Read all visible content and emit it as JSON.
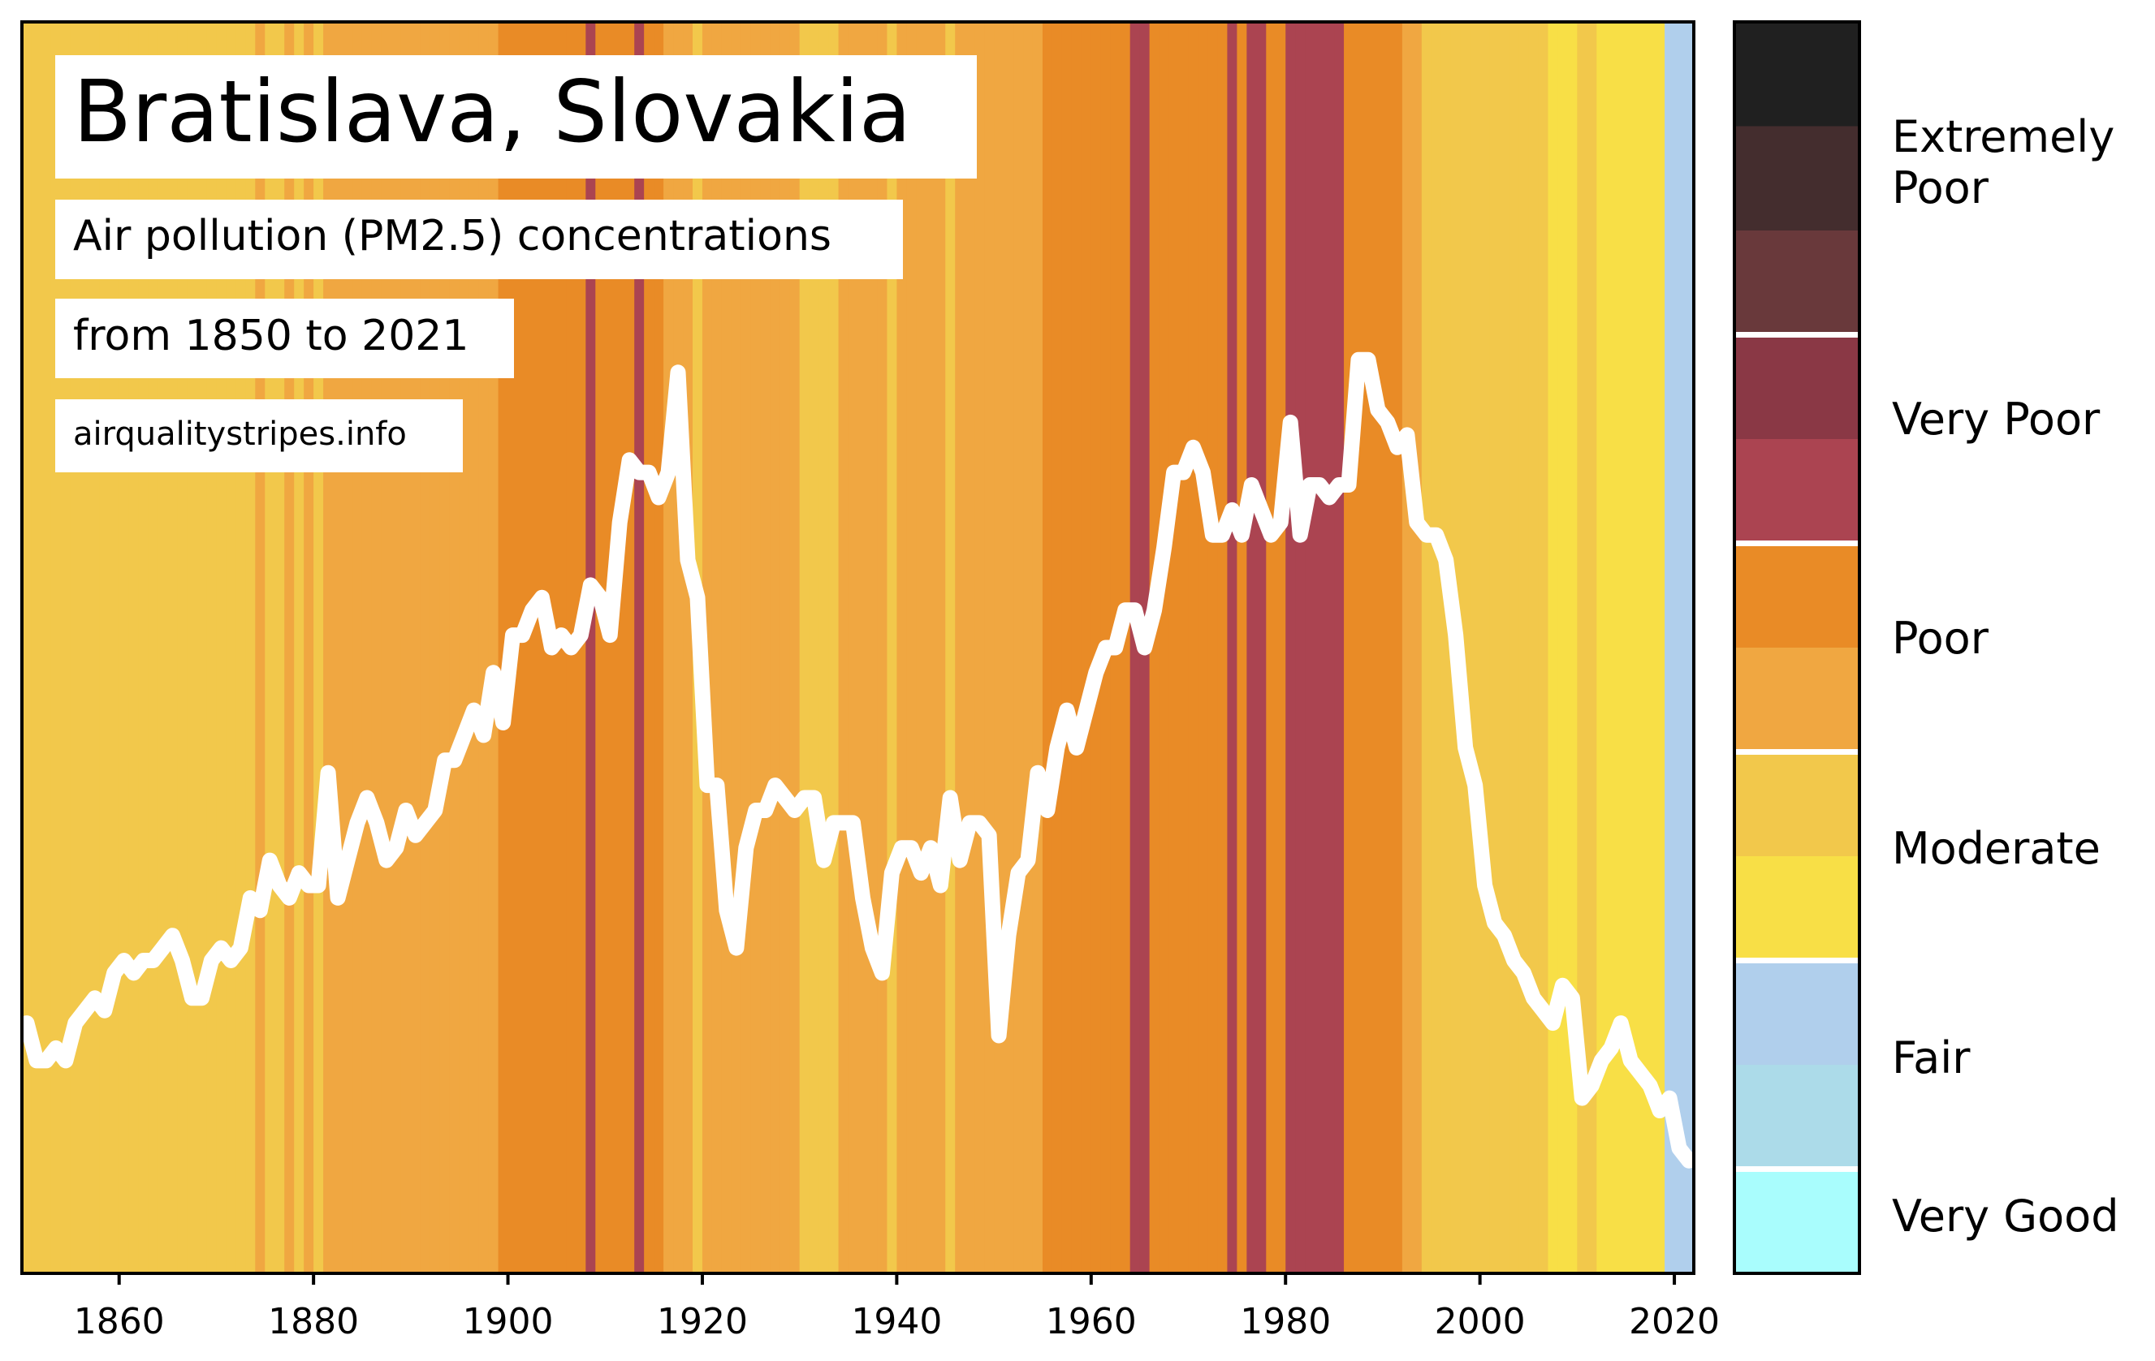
{
  "title": "Bratislava, Slovakia",
  "subtitle_line1": "Air pollution (PM2.5) concentrations",
  "subtitle_line2": "from 1850 to 2021",
  "source": "airqualitystripes.info",
  "chart_data": {
    "type": "heatmap",
    "title": "Bratislava, Slovakia",
    "subtitle": "Air pollution (PM2.5) concentrations from 1850 to 2021",
    "xlim": [
      1850,
      2022
    ],
    "x_ticks": [
      1860,
      1880,
      1900,
      1920,
      1940,
      1960,
      1980,
      2000,
      2020
    ],
    "y_axis_shown": false,
    "grid": false,
    "years_start": 1850,
    "stripe_colors": {
      "fair_light": "#b0cfec",
      "moderate_light": "#f8df46",
      "moderate_dark": "#f2c84b",
      "poor_light": "#f0a741",
      "poor_dark": "#e98b26",
      "very_poor_light": "#ab4451"
    },
    "stripes": [
      "moderate_dark",
      "moderate_dark",
      "moderate_dark",
      "moderate_dark",
      "moderate_dark",
      "moderate_dark",
      "moderate_dark",
      "moderate_dark",
      "moderate_dark",
      "moderate_dark",
      "moderate_dark",
      "moderate_dark",
      "moderate_dark",
      "moderate_dark",
      "moderate_dark",
      "moderate_dark",
      "moderate_dark",
      "moderate_dark",
      "moderate_dark",
      "moderate_dark",
      "moderate_dark",
      "moderate_dark",
      "moderate_dark",
      "moderate_dark",
      "poor_light",
      "moderate_dark",
      "moderate_dark",
      "poor_light",
      "moderate_dark",
      "poor_light",
      "moderate_dark",
      "poor_light",
      "poor_light",
      "poor_light",
      "poor_light",
      "poor_light",
      "poor_light",
      "poor_light",
      "poor_light",
      "poor_light",
      "poor_light",
      "poor_light",
      "poor_light",
      "poor_light",
      "poor_light",
      "poor_light",
      "poor_light",
      "poor_light",
      "poor_light",
      "poor_dark",
      "poor_dark",
      "poor_dark",
      "poor_dark",
      "poor_dark",
      "poor_dark",
      "poor_dark",
      "poor_dark",
      "poor_dark",
      "very_poor_light",
      "poor_dark",
      "poor_dark",
      "poor_dark",
      "poor_dark",
      "very_poor_light",
      "poor_dark",
      "poor_dark",
      "poor_light",
      "poor_light",
      "poor_light",
      "moderate_dark",
      "poor_light",
      "poor_light",
      "poor_light",
      "poor_light",
      "poor_light",
      "poor_light",
      "poor_light",
      "poor_light",
      "poor_light",
      "poor_light",
      "moderate_dark",
      "moderate_dark",
      "moderate_dark",
      "moderate_dark",
      "poor_light",
      "poor_light",
      "poor_light",
      "poor_light",
      "poor_light",
      "moderate_dark",
      "poor_light",
      "poor_light",
      "poor_light",
      "poor_light",
      "poor_light",
      "moderate_dark",
      "poor_light",
      "poor_light",
      "poor_light",
      "poor_light",
      "poor_light",
      "poor_light",
      "poor_light",
      "poor_light",
      "poor_light",
      "poor_dark",
      "poor_dark",
      "poor_dark",
      "poor_dark",
      "poor_dark",
      "poor_dark",
      "poor_dark",
      "poor_dark",
      "poor_dark",
      "very_poor_light",
      "very_poor_light",
      "poor_dark",
      "poor_dark",
      "poor_dark",
      "poor_dark",
      "poor_dark",
      "poor_dark",
      "poor_dark",
      "poor_dark",
      "very_poor_light",
      "poor_dark",
      "very_poor_light",
      "very_poor_light",
      "poor_dark",
      "poor_dark",
      "very_poor_light",
      "very_poor_light",
      "very_poor_light",
      "very_poor_light",
      "very_poor_light",
      "very_poor_light",
      "poor_dark",
      "poor_dark",
      "poor_dark",
      "poor_dark",
      "poor_dark",
      "poor_dark",
      "poor_light",
      "poor_light",
      "moderate_dark",
      "moderate_dark",
      "moderate_dark",
      "moderate_dark",
      "moderate_dark",
      "moderate_dark",
      "moderate_dark",
      "moderate_dark",
      "moderate_dark",
      "moderate_dark",
      "moderate_dark",
      "moderate_dark",
      "moderate_dark",
      "moderate_light",
      "moderate_light",
      "moderate_light",
      "moderate_dark",
      "moderate_dark",
      "moderate_light",
      "moderate_light",
      "moderate_light",
      "moderate_light",
      "moderate_light",
      "moderate_light",
      "moderate_light",
      "fair_light",
      "fair_light",
      "fair_light"
    ],
    "series": [
      {
        "x_start": 1850,
        "line_color": "#ffffff",
        "values": [
          0.2,
          0.17,
          0.17,
          0.18,
          0.17,
          0.2,
          0.21,
          0.22,
          0.21,
          0.24,
          0.25,
          0.24,
          0.25,
          0.25,
          0.26,
          0.27,
          0.25,
          0.22,
          0.22,
          0.25,
          0.26,
          0.25,
          0.26,
          0.3,
          0.29,
          0.33,
          0.31,
          0.3,
          0.32,
          0.31,
          0.31,
          0.4,
          0.3,
          0.33,
          0.36,
          0.38,
          0.36,
          0.33,
          0.34,
          0.37,
          0.35,
          0.36,
          0.37,
          0.41,
          0.41,
          0.43,
          0.45,
          0.43,
          0.48,
          0.44,
          0.51,
          0.51,
          0.53,
          0.54,
          0.5,
          0.51,
          0.5,
          0.51,
          0.55,
          0.54,
          0.51,
          0.6,
          0.65,
          0.64,
          0.64,
          0.62,
          0.64,
          0.72,
          0.57,
          0.54,
          0.39,
          0.39,
          0.29,
          0.26,
          0.34,
          0.37,
          0.37,
          0.39,
          0.38,
          0.37,
          0.38,
          0.38,
          0.33,
          0.36,
          0.36,
          0.36,
          0.3,
          0.26,
          0.24,
          0.32,
          0.34,
          0.34,
          0.32,
          0.34,
          0.31,
          0.38,
          0.33,
          0.36,
          0.36,
          0.35,
          0.19,
          0.27,
          0.32,
          0.33,
          0.4,
          0.37,
          0.42,
          0.45,
          0.42,
          0.45,
          0.48,
          0.5,
          0.5,
          0.53,
          0.53,
          0.5,
          0.53,
          0.58,
          0.64,
          0.64,
          0.66,
          0.64,
          0.59,
          0.59,
          0.61,
          0.59,
          0.63,
          0.61,
          0.59,
          0.6,
          0.68,
          0.59,
          0.63,
          0.63,
          0.62,
          0.63,
          0.63,
          0.73,
          0.73,
          0.69,
          0.68,
          0.66,
          0.67,
          0.6,
          0.59,
          0.59,
          0.57,
          0.51,
          0.42,
          0.39,
          0.31,
          0.28,
          0.27,
          0.25,
          0.24,
          0.22,
          0.21,
          0.2,
          0.23,
          0.22,
          0.14,
          0.15,
          0.17,
          0.18,
          0.2,
          0.17,
          0.16,
          0.15,
          0.13,
          0.14,
          0.1,
          0.09
        ]
      }
    ],
    "legend": {
      "position": "right",
      "categories": [
        "Extremely Poor",
        "Very Poor",
        "Poor",
        "Moderate",
        "Fair",
        "Very Good"
      ],
      "colors": [
        "#202020",
        "#442d2e",
        "#69393b",
        "#8a3845",
        "#ab4451",
        "#e98b26",
        "#f0a741",
        "#f2c84b",
        "#f8df46",
        "#b0cfec",
        "#acdbe9",
        "#a9fdfd"
      ]
    }
  }
}
